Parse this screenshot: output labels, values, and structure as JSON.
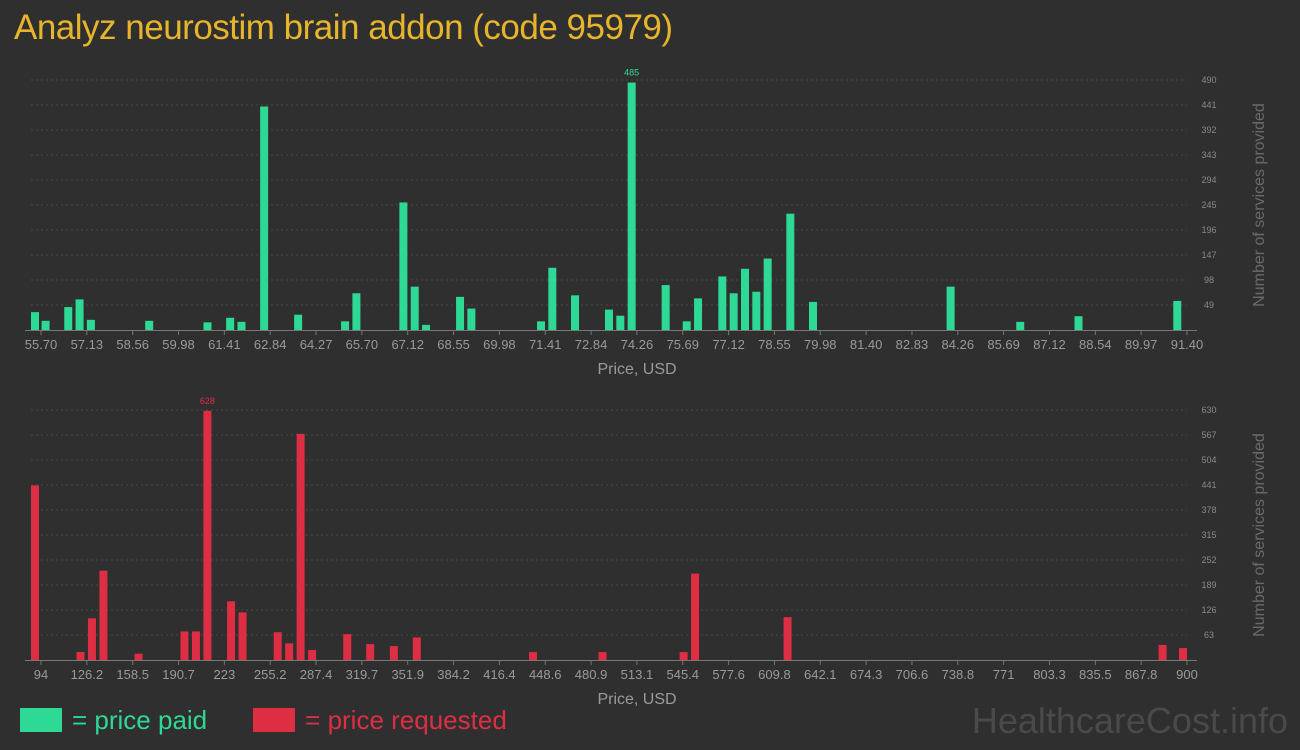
{
  "title": "Analyz neurostim brain addon (code 95979)",
  "watermark": "HealthcareCost.info",
  "legend": {
    "paid_label": "= price paid",
    "requested_label": "= price requested",
    "paid_color": "#2ed895",
    "requested_color": "#de2e44"
  },
  "chart_data": [
    {
      "type": "bar",
      "name": "price paid",
      "color": "#2ed895",
      "xlabel": "Price, USD",
      "ylabel": "Number of services provided",
      "xlim": [
        55.7,
        91.4
      ],
      "ylim": [
        0,
        490
      ],
      "x_ticks": [
        "55.70",
        "57.13",
        "58.56",
        "59.98",
        "61.41",
        "62.84",
        "64.27",
        "65.70",
        "67.12",
        "68.55",
        "69.98",
        "71.41",
        "72.84",
        "74.26",
        "75.69",
        "77.12",
        "78.55",
        "79.98",
        "81.40",
        "82.83",
        "84.26",
        "85.69",
        "87.12",
        "88.54",
        "89.97",
        "91.40"
      ],
      "y_ticks": [
        "49",
        "98",
        "147",
        "196",
        "245",
        "294",
        "343",
        "392",
        "441",
        "490"
      ],
      "max_label": "485",
      "points": [
        {
          "x": 55.8,
          "y": 35
        },
        {
          "x": 56.15,
          "y": 18
        },
        {
          "x": 56.85,
          "y": 45
        },
        {
          "x": 57.2,
          "y": 60
        },
        {
          "x": 57.55,
          "y": 20
        },
        {
          "x": 59.35,
          "y": 18
        },
        {
          "x": 61.15,
          "y": 15
        },
        {
          "x": 61.85,
          "y": 24
        },
        {
          "x": 62.2,
          "y": 16
        },
        {
          "x": 62.9,
          "y": 438
        },
        {
          "x": 63.95,
          "y": 30
        },
        {
          "x": 65.4,
          "y": 17
        },
        {
          "x": 65.75,
          "y": 72
        },
        {
          "x": 67.2,
          "y": 250
        },
        {
          "x": 67.55,
          "y": 85
        },
        {
          "x": 67.9,
          "y": 10
        },
        {
          "x": 68.95,
          "y": 65
        },
        {
          "x": 69.3,
          "y": 42
        },
        {
          "x": 71.45,
          "y": 17
        },
        {
          "x": 71.8,
          "y": 122
        },
        {
          "x": 72.5,
          "y": 68
        },
        {
          "x": 73.55,
          "y": 40
        },
        {
          "x": 73.9,
          "y": 28
        },
        {
          "x": 74.25,
          "y": 485
        },
        {
          "x": 75.3,
          "y": 88
        },
        {
          "x": 75.95,
          "y": 17
        },
        {
          "x": 76.3,
          "y": 62
        },
        {
          "x": 77.05,
          "y": 105
        },
        {
          "x": 77.4,
          "y": 72
        },
        {
          "x": 77.75,
          "y": 120
        },
        {
          "x": 78.1,
          "y": 75
        },
        {
          "x": 78.45,
          "y": 140
        },
        {
          "x": 79.15,
          "y": 228
        },
        {
          "x": 79.85,
          "y": 55
        },
        {
          "x": 84.1,
          "y": 85
        },
        {
          "x": 86.25,
          "y": 16
        },
        {
          "x": 88.05,
          "y": 27
        },
        {
          "x": 91.1,
          "y": 57
        }
      ]
    },
    {
      "type": "bar",
      "name": "price requested",
      "color": "#de2e44",
      "xlabel": "Price, USD",
      "ylabel": "Number of services provided",
      "xlim": [
        94,
        900
      ],
      "ylim": [
        0,
        630
      ],
      "x_ticks": [
        "94",
        "126.2",
        "158.5",
        "190.7",
        "223",
        "255.2",
        "287.4",
        "319.7",
        "351.9",
        "384.2",
        "416.4",
        "448.6",
        "480.9",
        "513.1",
        "545.4",
        "577.6",
        "609.8",
        "642.1",
        "674.3",
        "706.6",
        "738.8",
        "771",
        "803.3",
        "835.5",
        "867.8",
        "900"
      ],
      "y_ticks": [
        "63",
        "126",
        "189",
        "252",
        "315",
        "378",
        "441",
        "504",
        "567",
        "630"
      ],
      "max_label": "628",
      "points": [
        {
          "x": 96,
          "y": 440
        },
        {
          "x": 128.5,
          "y": 20
        },
        {
          "x": 136.5,
          "y": 105
        },
        {
          "x": 144.5,
          "y": 225
        },
        {
          "x": 169,
          "y": 16
        },
        {
          "x": 201,
          "y": 72
        },
        {
          "x": 209,
          "y": 72
        },
        {
          "x": 217,
          "y": 628
        },
        {
          "x": 233.5,
          "y": 148
        },
        {
          "x": 241.5,
          "y": 120
        },
        {
          "x": 266,
          "y": 70
        },
        {
          "x": 274,
          "y": 42
        },
        {
          "x": 282,
          "y": 570
        },
        {
          "x": 290,
          "y": 25
        },
        {
          "x": 314.5,
          "y": 65
        },
        {
          "x": 330.5,
          "y": 40
        },
        {
          "x": 347,
          "y": 35
        },
        {
          "x": 363,
          "y": 57
        },
        {
          "x": 444,
          "y": 20
        },
        {
          "x": 492.5,
          "y": 20
        },
        {
          "x": 549,
          "y": 20
        },
        {
          "x": 557,
          "y": 218
        },
        {
          "x": 621.5,
          "y": 108
        },
        {
          "x": 883,
          "y": 38
        },
        {
          "x": 932,
          "y": 30
        }
      ]
    }
  ]
}
